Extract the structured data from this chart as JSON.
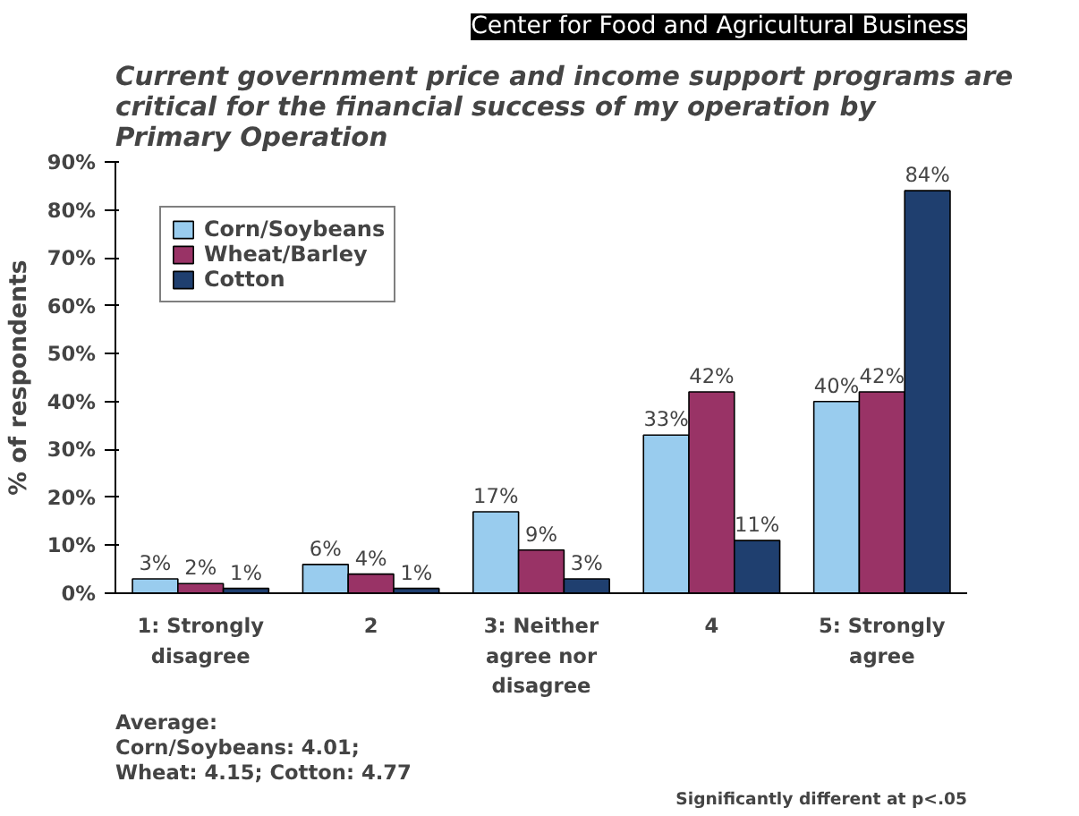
{
  "chart_data": {
    "type": "bar",
    "title": "Current government price and income support programs are critical for the financial success of my operation by Primary Operation",
    "ylabel": "% of respondents",
    "categories": [
      "1: Strongly disagree",
      "2",
      "3: Neither agree nor disagree",
      "4",
      "5: Strongly agree"
    ],
    "series": [
      {
        "name": "Corn/Soybeans",
        "color": "#99ccee",
        "values": [
          3,
          6,
          17,
          33,
          40
        ],
        "value_labels": [
          "3%",
          "6%",
          "17%",
          "33%",
          "40%"
        ]
      },
      {
        "name": "Wheat/Barley",
        "color": "#993366",
        "values": [
          2,
          4,
          9,
          42,
          42
        ],
        "value_labels": [
          "2%",
          "4%",
          "9%",
          "42%",
          "42%"
        ]
      },
      {
        "name": "Cotton",
        "color": "#1f3f6f",
        "values": [
          1,
          1,
          3,
          11,
          84
        ],
        "value_labels": [
          "1%",
          "1%",
          "3%",
          "11%",
          "84%"
        ]
      }
    ],
    "ylim": [
      0,
      90
    ],
    "yticks": [
      {
        "value": 0,
        "label": "0%"
      },
      {
        "value": 10,
        "label": "10%"
      },
      {
        "value": 20,
        "label": "20%"
      },
      {
        "value": 30,
        "label": "30%"
      },
      {
        "value": 40,
        "label": "40%"
      },
      {
        "value": 50,
        "label": "50%"
      },
      {
        "value": 60,
        "label": "60%"
      },
      {
        "value": 70,
        "label": "70%"
      },
      {
        "value": 80,
        "label": "80%"
      },
      {
        "value": 90,
        "label": "90%"
      }
    ],
    "grid": false,
    "legend": "top left",
    "annotations": [
      "Center for Food and Agricultural Business",
      "Average:\nCorn/Soybeans: 4.01;\nWheat: 4.15; Cotton: 4.77",
      "Significantly different at p<.05"
    ]
  }
}
